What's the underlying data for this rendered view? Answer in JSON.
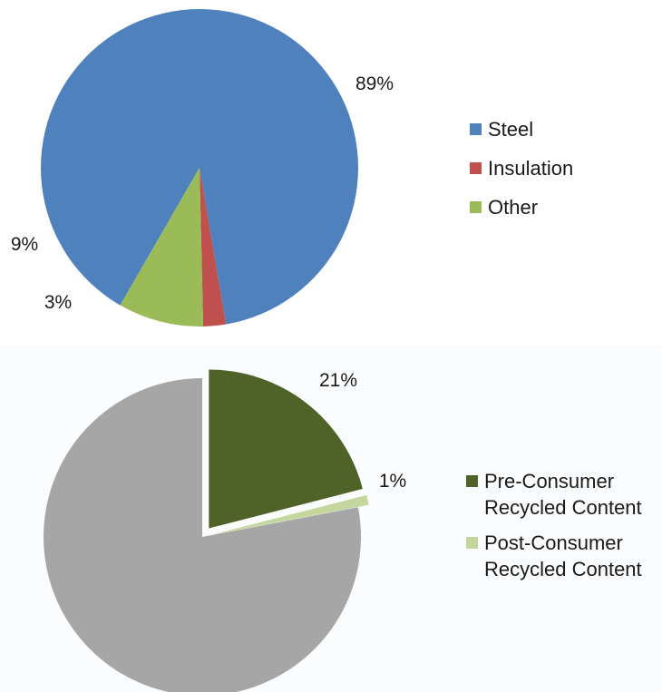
{
  "charts": [
    {
      "id": "materials",
      "legend": [
        {
          "label": "Steel",
          "color": "#4f81bd"
        },
        {
          "label": "Insulation",
          "color": "#c0504d"
        },
        {
          "label": "Other",
          "color": "#9bbb59"
        }
      ]
    },
    {
      "id": "recycled",
      "legend": [
        {
          "label": "Pre-Consumer\nRecycled Content",
          "color": "#4f6228"
        },
        {
          "label": "Post-Consumer\nRecycled Content",
          "color": "#c3d69b"
        }
      ]
    }
  ],
  "chart_data": [
    {
      "type": "pie",
      "slices": [
        {
          "name": "Steel",
          "value": 89,
          "label": "89%",
          "color": "#4f81bd"
        },
        {
          "name": "Insulation",
          "value": 2.3,
          "label": "3%",
          "color": "#c0504d"
        },
        {
          "name": "Other",
          "value": 8.7,
          "label": "9%",
          "color": "#9bbb59"
        }
      ],
      "legend_position": "right"
    },
    {
      "type": "pie",
      "slices": [
        {
          "name": "Pre-Consumer Recycled Content",
          "value": 21,
          "label": "21%",
          "color": "#4f6228",
          "exploded": true
        },
        {
          "name": "Post-Consumer Recycled Content",
          "value": 1,
          "label": "1%",
          "color": "#c3d69b",
          "exploded": true
        },
        {
          "name": "",
          "value": 78,
          "label": "",
          "color": "#a6a6a6",
          "exploded": false
        }
      ],
      "legend_position": "right"
    }
  ]
}
